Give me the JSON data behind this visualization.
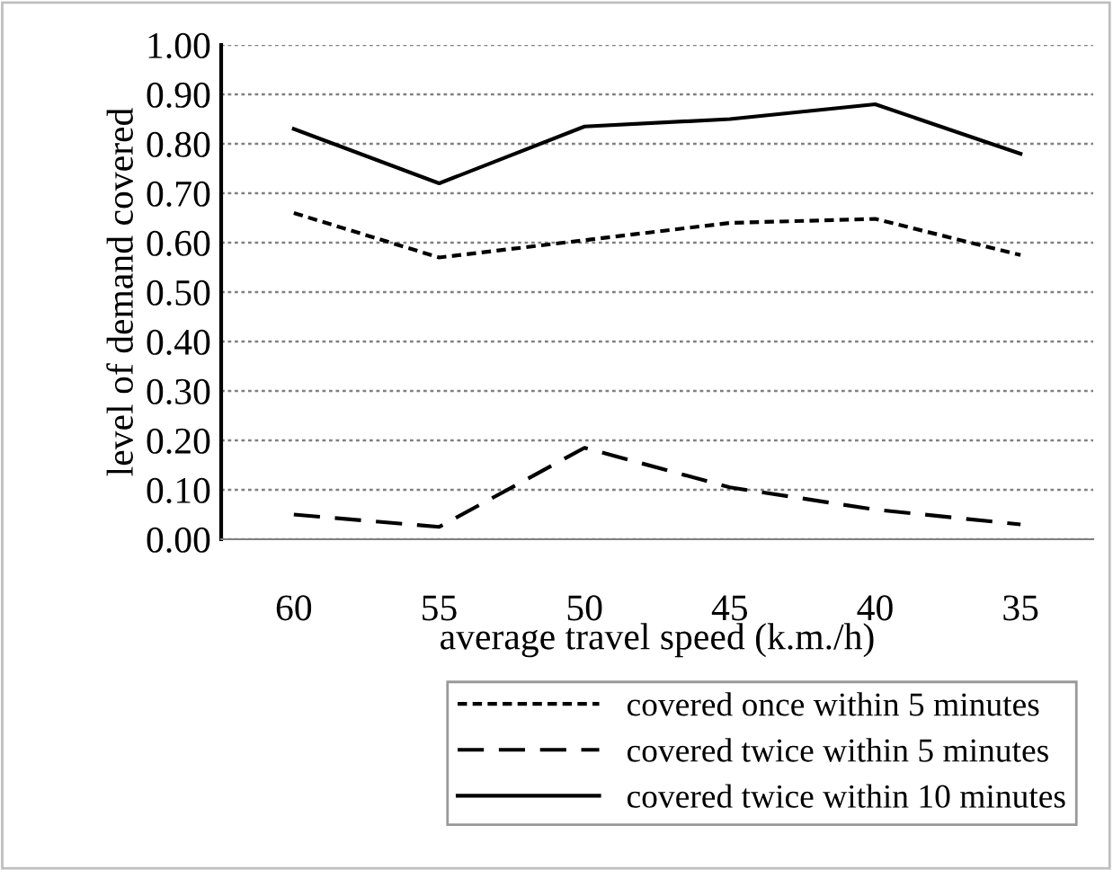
{
  "chart_data": {
    "type": "line",
    "xlabel": "average travel speed (k.m./h)",
    "ylabel": "level of demand covered",
    "categories": [
      "60",
      "55",
      "50",
      "45",
      "40",
      "35"
    ],
    "series": [
      {
        "name": "covered once within 5 minutes",
        "color": "#000000",
        "line_style": "dotted",
        "values": [
          0.66,
          0.57,
          0.605,
          0.64,
          0.648,
          0.575
        ]
      },
      {
        "name": "covered twice within 5 minutes",
        "color": "#000000",
        "line_style": "dashed",
        "values": [
          0.05,
          0.025,
          0.185,
          0.105,
          0.06,
          0.03
        ]
      },
      {
        "name": "covered twice within 10 minutes",
        "color": "#000000",
        "line_style": "solid",
        "values": [
          0.83,
          0.72,
          0.835,
          0.85,
          0.88,
          0.78
        ]
      }
    ],
    "ylim": [
      0,
      1
    ],
    "yticks": [
      {
        "value": 0,
        "label": "0.00"
      },
      {
        "value": 0.1,
        "label": "0.10"
      },
      {
        "value": 0.2,
        "label": "0.20"
      },
      {
        "value": 0.3,
        "label": "0.30"
      },
      {
        "value": 0.4,
        "label": "0.40"
      },
      {
        "value": 0.5,
        "label": "0.50"
      },
      {
        "value": 0.6,
        "label": "0.60"
      },
      {
        "value": 0.7,
        "label": "0.70"
      },
      {
        "value": 0.8,
        "label": "0.80"
      },
      {
        "value": 0.9,
        "label": "0.90"
      },
      {
        "value": 1,
        "label": "1.00"
      }
    ],
    "grid": "y",
    "legend": "bottom",
    "marker": "none"
  }
}
